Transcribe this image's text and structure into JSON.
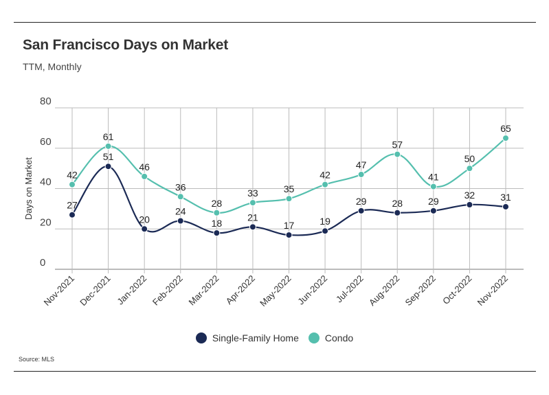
{
  "title": "San Francisco Days on Market",
  "subtitle": "TTM, Monthly",
  "source": "Source:  MLS",
  "colors": {
    "single_family": "#1b2a55",
    "condo": "#55bfae",
    "grid": "#bbbbbb",
    "axis": "#777777"
  },
  "chart_data": {
    "type": "line",
    "categories": [
      "Nov-2021",
      "Dec-2021",
      "Jan-2022",
      "Feb-2022",
      "Mar-2022",
      "Apr-2022",
      "May-2022",
      "Jun-2022",
      "Jul-2022",
      "Aug-2022",
      "Sep-2022",
      "Oct-2022",
      "Nov-2022"
    ],
    "series": [
      {
        "name": "Single-Family Home",
        "values": [
          27,
          51,
          20,
          24,
          18,
          21,
          17,
          19,
          29,
          28,
          29,
          32,
          31
        ]
      },
      {
        "name": "Condo",
        "values": [
          42,
          61,
          46,
          36,
          28,
          33,
          35,
          42,
          47,
          57,
          41,
          50,
          65
        ]
      }
    ],
    "ylabel": "Days on Market",
    "xlabel": "",
    "ylim": [
      0,
      80
    ],
    "yticks": [
      0,
      20,
      40,
      60,
      80
    ],
    "grid": true,
    "legend_position": "bottom-center"
  }
}
